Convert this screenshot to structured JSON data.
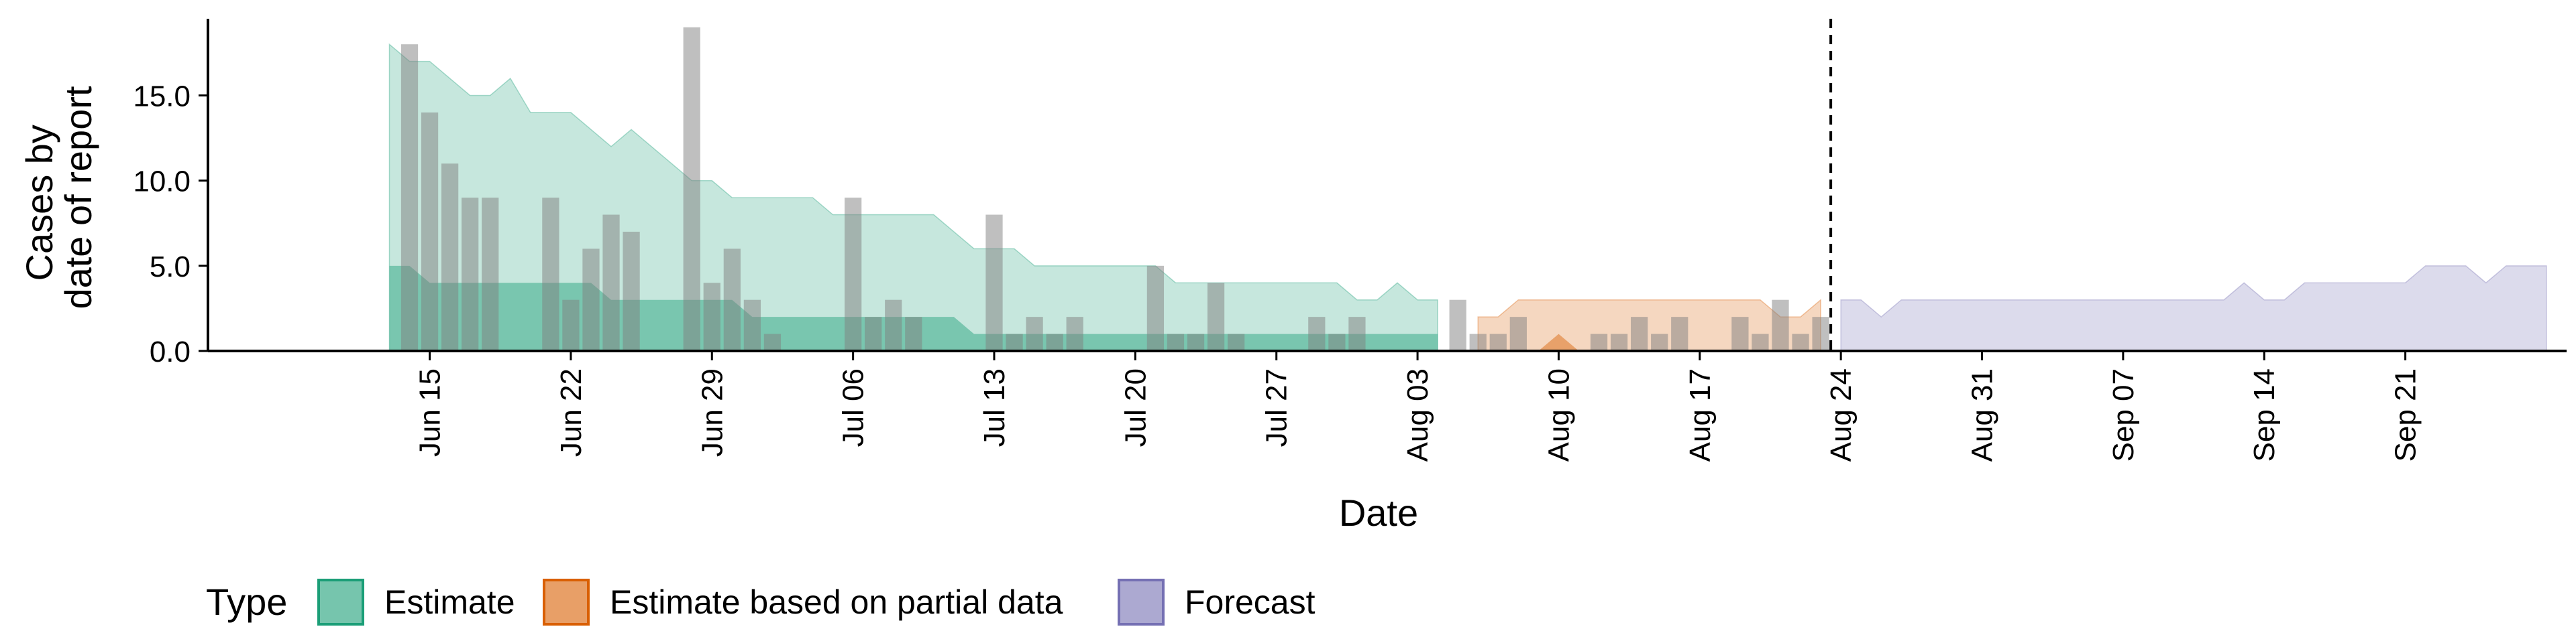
{
  "chart_data": {
    "type": "area",
    "xlabel": "Date",
    "ylabel": [
      "Cases by",
      "date of report"
    ],
    "ylim": [
      0,
      19.5
    ],
    "y_ticks": [
      0.0,
      5.0,
      10.0,
      15.0
    ],
    "y_tick_labels": [
      "0.0",
      "5.0",
      "10.0",
      "15.0"
    ],
    "x_range": [
      "2020-06-04",
      "2020-09-29"
    ],
    "x_ticks": [
      "2020-06-15",
      "2020-06-22",
      "2020-06-29",
      "2020-07-06",
      "2020-07-13",
      "2020-07-20",
      "2020-07-27",
      "2020-08-03",
      "2020-08-10",
      "2020-08-17",
      "2020-08-24",
      "2020-08-31",
      "2020-09-07",
      "2020-09-14",
      "2020-09-21"
    ],
    "x_tick_labels": [
      "Jun 15",
      "Jun 22",
      "Jun 29",
      "Jul 06",
      "Jul 13",
      "Jul 20",
      "Jul 27",
      "Aug 03",
      "Aug 10",
      "Aug 17",
      "Aug 24",
      "Aug 31",
      "Sep 07",
      "Sep 14",
      "Sep 21"
    ],
    "forecast_date": "2020-08-23",
    "grid": false,
    "legend": {
      "position": "bottom",
      "title": "Type",
      "entries": [
        {
          "label": "Estimate",
          "fill": "#1b9e77",
          "stroke": "#1b9e77"
        },
        {
          "label": "Estimate based on partial data",
          "fill": "#d95f02",
          "stroke": "#d95f02"
        },
        {
          "label": "Forecast",
          "fill": "#7570b3",
          "stroke": "#7570b3"
        }
      ]
    },
    "colors": {
      "bars": "#808080",
      "estimate": "#1b9e77",
      "partial": "#d95f02",
      "forecast": "#7570b3"
    },
    "observed_cases": {
      "start": "2020-06-14",
      "values": [
        18,
        14,
        11,
        9,
        9,
        0,
        0,
        9,
        3,
        6,
        8,
        7,
        0,
        0,
        19,
        4,
        6,
        3,
        1,
        0,
        0,
        0,
        9,
        2,
        3,
        2,
        0,
        0,
        0,
        8,
        1,
        2,
        1,
        2,
        0,
        0,
        0,
        5,
        1,
        1,
        4,
        1,
        0,
        0,
        0,
        2,
        1,
        2,
        0,
        0,
        0,
        0,
        3,
        1,
        1,
        2,
        0,
        0,
        0,
        1,
        1,
        2,
        1,
        2,
        0,
        0,
        2,
        1,
        3,
        1,
        2
      ]
    },
    "series": [
      {
        "name": "Estimate",
        "start": "2020-06-13",
        "upper_90": [
          18,
          17,
          17,
          16,
          15,
          15,
          16,
          14,
          14,
          14,
          13,
          12,
          13,
          12,
          11,
          10,
          10,
          9,
          9,
          9,
          9,
          9,
          8,
          8,
          8,
          8,
          8,
          8,
          7,
          6,
          6,
          6,
          5,
          5,
          5,
          5,
          5,
          5,
          5,
          4,
          4,
          4,
          4,
          4,
          4,
          4,
          4,
          4,
          3,
          3,
          4,
          3,
          3
        ],
        "upper_50": [
          5,
          5,
          4,
          4,
          4,
          4,
          4,
          4,
          4,
          4,
          4,
          3,
          3,
          3,
          3,
          3,
          3,
          3,
          2,
          2,
          2,
          2,
          2,
          2,
          2,
          2,
          2,
          2,
          2,
          1,
          1,
          1,
          1,
          1,
          1,
          1,
          1,
          1,
          1,
          1,
          1,
          1,
          1,
          1,
          1,
          1,
          1,
          1,
          1,
          1,
          1,
          1,
          1
        ],
        "lower": [
          0,
          0,
          0,
          0,
          0,
          0,
          0,
          0,
          0,
          0,
          0,
          0,
          0,
          0,
          0,
          0,
          0,
          0,
          0,
          0,
          0,
          0,
          0,
          0,
          0,
          0,
          0,
          0,
          0,
          0,
          0,
          0,
          0,
          0,
          0,
          0,
          0,
          0,
          0,
          0,
          0,
          0,
          0,
          0,
          0,
          0,
          0,
          0,
          0,
          0,
          0,
          0,
          0
        ]
      },
      {
        "name": "Estimate based on partial data",
        "start": "2020-08-06",
        "upper_90": [
          2,
          2,
          3,
          3,
          3,
          3,
          3,
          3,
          3,
          3,
          3,
          3,
          3,
          3,
          3,
          2,
          2,
          3
        ],
        "upper_50": [
          0,
          0,
          0,
          0,
          1,
          0,
          0,
          0,
          0,
          0,
          0,
          0,
          0,
          0,
          0,
          0,
          0,
          0
        ],
        "lower": [
          0,
          0,
          0,
          0,
          0,
          0,
          0,
          0,
          0,
          0,
          0,
          0,
          0,
          0,
          0,
          0,
          0,
          0
        ]
      },
      {
        "name": "Forecast",
        "start": "2020-08-24",
        "upper_90": [
          3,
          3,
          2,
          3,
          3,
          3,
          3,
          3,
          3,
          3,
          3,
          3,
          3,
          3,
          3,
          3,
          3,
          3,
          3,
          3,
          4,
          3,
          3,
          4,
          4,
          4,
          4,
          4,
          4,
          5,
          5,
          5,
          4,
          5,
          5,
          5
        ],
        "lower": [
          0,
          0,
          0,
          0,
          0,
          0,
          0,
          0,
          0,
          0,
          0,
          0,
          0,
          0,
          0,
          0,
          0,
          0,
          0,
          0,
          0,
          0,
          0,
          0,
          0,
          0,
          0,
          0,
          0,
          0,
          0,
          0,
          0,
          0,
          0,
          0
        ]
      }
    ]
  }
}
